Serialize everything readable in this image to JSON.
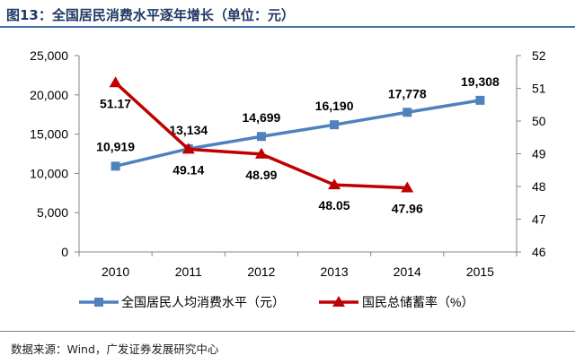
{
  "figure": {
    "title": "图13：全国居民消费水平逐年增长（单位：元）",
    "source": "数据来源：Wind，广发证券发展研究中心"
  },
  "colors": {
    "consumption": "#4f81bd",
    "savings": "#c00000",
    "rule": "#4472a8",
    "axis": "#868686",
    "title": "#1f3864"
  },
  "chart_data": {
    "type": "line",
    "x": [
      "2010",
      "2011",
      "2012",
      "2013",
      "2014",
      "2015"
    ],
    "left_axis": {
      "range": [
        0,
        25000
      ],
      "ticks": [
        0,
        5000,
        10000,
        15000,
        20000,
        25000
      ],
      "tick_labels": [
        "0",
        "5,000",
        "10,000",
        "15,000",
        "20,000",
        "25,000"
      ]
    },
    "right_axis": {
      "range": [
        46,
        52
      ],
      "ticks": [
        46,
        47,
        48,
        49,
        50,
        51,
        52
      ],
      "tick_labels": [
        "46",
        "47",
        "48",
        "49",
        "50",
        "51",
        "52"
      ]
    },
    "grid": false,
    "legend_position": "bottom",
    "series": [
      {
        "name": "全国居民人均消费水平（元）",
        "axis": "left",
        "marker": "square",
        "values": [
          10919,
          13134,
          14699,
          16190,
          17778,
          19308
        ],
        "labels": [
          "10,919",
          "13,134",
          "14,699",
          "16,190",
          "17,778",
          "19,308"
        ]
      },
      {
        "name": "国民总储蓄率（%）",
        "axis": "right",
        "marker": "triangle",
        "values": [
          51.17,
          49.14,
          48.99,
          48.05,
          47.96,
          null
        ],
        "labels": [
          "51.17",
          "49.14",
          "48.99",
          "48.05",
          "47.96",
          ""
        ]
      }
    ]
  }
}
